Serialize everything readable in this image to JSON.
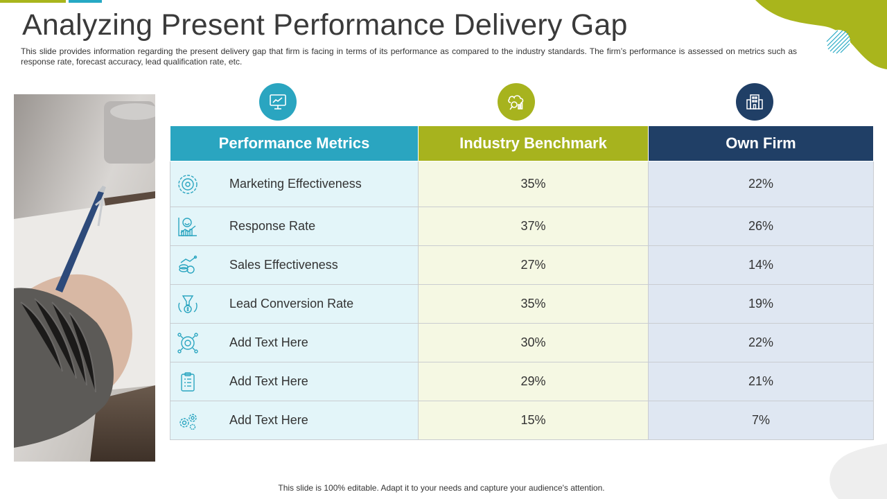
{
  "title": "Analyzing Present Performance Delivery Gap",
  "subtitle": "This slide provides information regarding the present delivery gap that firm is facing in terms of its performance as compared to the industry standards. The firm’s performance is assessed on metrics such as response rate, forecast accuracy, lead qualification rate, etc.",
  "colors": {
    "teal": "#2aa5c0",
    "olive": "#a7b31e",
    "navy": "#203f66"
  },
  "header_icons": [
    "monitor-chart-icon",
    "cloud-analytics-icon",
    "office-building-icon"
  ],
  "table": {
    "headers": [
      "Performance Metrics",
      "Industry Benchmark",
      "Own Firm"
    ],
    "rows": [
      {
        "icon": "target-gear-icon",
        "metric": "Marketing Effectiveness",
        "benchmark": "35%",
        "own": "22%"
      },
      {
        "icon": "smiley-growth-chart-icon",
        "metric": "Response Rate",
        "benchmark": "37%",
        "own": "26%"
      },
      {
        "icon": "coins-trend-icon",
        "metric": "Sales Effectiveness",
        "benchmark": "27%",
        "own": "14%"
      },
      {
        "icon": "hand-funnel-dollar-icon",
        "metric": "Lead Conversion Rate",
        "benchmark": "35%",
        "own": "19%"
      },
      {
        "icon": "target-nodes-icon",
        "metric": "Add Text Here",
        "benchmark": "30%",
        "own": "22%"
      },
      {
        "icon": "clipboard-list-icon",
        "metric": "Add Text Here",
        "benchmark": "29%",
        "own": "21%"
      },
      {
        "icon": "gears-icon",
        "metric": "Add Text Here",
        "benchmark": "15%",
        "own": "7%"
      }
    ]
  },
  "footer": "This slide is 100% editable. Adapt it to your needs and capture your audience's attention."
}
